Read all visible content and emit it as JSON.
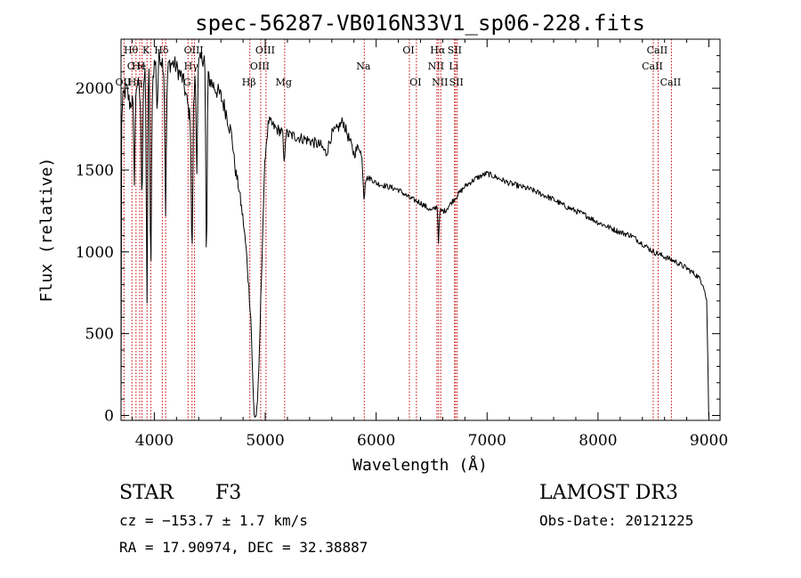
{
  "chart_data": {
    "type": "line",
    "title": "spec-56287-VB016N33V1_sp06-228.fits",
    "xlabel": "Wavelength (Å)",
    "ylabel": "Flux (relative)",
    "xlim": [
      3700,
      9100
    ],
    "ylim": [
      -30,
      2300
    ],
    "x_ticks": [
      4000,
      5000,
      6000,
      7000,
      8000,
      9000
    ],
    "y_ticks": [
      0,
      500,
      1000,
      1500,
      2000
    ],
    "x_tick_labels": [
      "4000",
      "5000",
      "6000",
      "7000",
      "8000",
      "9000"
    ],
    "y_tick_labels": [
      "0",
      "500",
      "1000",
      "1500",
      "2000"
    ],
    "line_color": "#000000",
    "marker_color": "#cc0000",
    "spectrum_anchors": [
      [
        3700,
        0
      ],
      [
        3705,
        1800
      ],
      [
        3720,
        1950
      ],
      [
        3750,
        2000
      ],
      [
        3780,
        1900
      ],
      [
        3820,
        1950
      ],
      [
        3850,
        2050
      ],
      [
        3880,
        1900
      ],
      [
        3900,
        2050
      ],
      [
        3950,
        2150
      ],
      [
        3970,
        1950
      ],
      [
        4000,
        2150
      ],
      [
        4050,
        2200
      ],
      [
        4080,
        2150
      ],
      [
        4102,
        1950
      ],
      [
        4130,
        2150
      ],
      [
        4180,
        2150
      ],
      [
        4220,
        2100
      ],
      [
        4260,
        2050
      ],
      [
        4300,
        1900
      ],
      [
        4340,
        1750
      ],
      [
        4370,
        2100
      ],
      [
        4400,
        2150
      ],
      [
        4450,
        2200
      ],
      [
        4500,
        2050
      ],
      [
        4550,
        2000
      ],
      [
        4600,
        1950
      ],
      [
        4650,
        1850
      ],
      [
        4700,
        1700
      ],
      [
        4730,
        1500
      ],
      [
        4760,
        1400
      ],
      [
        4800,
        1200
      ],
      [
        4830,
        1000
      ],
      [
        4850,
        800
      ],
      [
        4870,
        600
      ],
      [
        4880,
        400
      ],
      [
        4890,
        150
      ],
      [
        4900,
        0
      ],
      [
        4920,
        0
      ],
      [
        4940,
        200
      ],
      [
        4960,
        700
      ],
      [
        4980,
        1200
      ],
      [
        5000,
        1600
      ],
      [
        5030,
        1800
      ],
      [
        5100,
        1750
      ],
      [
        5200,
        1720
      ],
      [
        5300,
        1700
      ],
      [
        5400,
        1680
      ],
      [
        5500,
        1650
      ],
      [
        5550,
        1600
      ],
      [
        5600,
        1720
      ],
      [
        5650,
        1750
      ],
      [
        5700,
        1800
      ],
      [
        5750,
        1700
      ],
      [
        5800,
        1600
      ],
      [
        5850,
        1650
      ],
      [
        5900,
        1450
      ],
      [
        5950,
        1450
      ],
      [
        6000,
        1420
      ],
      [
        6100,
        1400
      ],
      [
        6200,
        1380
      ],
      [
        6300,
        1330
      ],
      [
        6400,
        1300
      ],
      [
        6500,
        1250
      ],
      [
        6550,
        1280
      ],
      [
        6563,
        1050
      ],
      [
        6575,
        1250
      ],
      [
        6620,
        1250
      ],
      [
        6700,
        1320
      ],
      [
        6800,
        1400
      ],
      [
        6900,
        1450
      ],
      [
        7000,
        1480
      ],
      [
        7100,
        1450
      ],
      [
        7200,
        1420
      ],
      [
        7300,
        1400
      ],
      [
        7400,
        1380
      ],
      [
        7500,
        1350
      ],
      [
        7600,
        1320
      ],
      [
        7700,
        1280
      ],
      [
        7800,
        1250
      ],
      [
        7900,
        1220
      ],
      [
        8000,
        1180
      ],
      [
        8100,
        1150
      ],
      [
        8200,
        1120
      ],
      [
        8300,
        1100
      ],
      [
        8400,
        1050
      ],
      [
        8500,
        1000
      ],
      [
        8600,
        970
      ],
      [
        8700,
        940
      ],
      [
        8800,
        900
      ],
      [
        8900,
        850
      ],
      [
        8950,
        800
      ],
      [
        8980,
        700
      ],
      [
        9000,
        0
      ]
    ],
    "absorption_dips": [
      {
        "center": 3820,
        "depth": 500
      },
      {
        "center": 3889,
        "depth": 600
      },
      {
        "center": 3934,
        "depth": 1400
      },
      {
        "center": 3968,
        "depth": 1100
      },
      {
        "center": 4026,
        "depth": 300
      },
      {
        "center": 4102,
        "depth": 700
      },
      {
        "center": 4340,
        "depth": 800
      },
      {
        "center": 4383,
        "depth": 600
      },
      {
        "center": 4470,
        "depth": 1200
      },
      {
        "center": 5170,
        "depth": 200
      },
      {
        "center": 5890,
        "depth": 150
      }
    ],
    "line_markers": [
      {
        "w": 3727,
        "labels": [
          {
            "text": "OII",
            "row": 2
          }
        ]
      },
      {
        "w": 3798,
        "labels": [
          {
            "text": "Hθ",
            "row": 0
          },
          {
            "text": "O",
            "row": 1
          }
        ]
      },
      {
        "w": 3835,
        "labels": [
          {
            "text": "Hη",
            "row": 2
          }
        ]
      },
      {
        "w": 3869,
        "labels": [
          {
            "text": "He",
            "row": 1
          }
        ]
      },
      {
        "w": 3889,
        "labels": [
          {
            "text": "H",
            "row": 1
          }
        ]
      },
      {
        "w": 3934,
        "labels": [
          {
            "text": "K",
            "row": 0
          }
        ]
      },
      {
        "w": 3968,
        "labels": [
          {
            "text": "",
            "row": 0
          }
        ]
      },
      {
        "w": 4072,
        "labels": [
          {
            "text": "Hδ",
            "row": 0
          }
        ]
      },
      {
        "w": 4102,
        "labels": [
          {
            "text": "",
            "row": 0
          }
        ]
      },
      {
        "w": 4304,
        "labels": [
          {
            "text": "G",
            "row": 2
          }
        ]
      },
      {
        "w": 4340,
        "labels": [
          {
            "text": "Hγ",
            "row": 1
          }
        ]
      },
      {
        "w": 4363,
        "labels": [
          {
            "text": "OIII",
            "row": 0
          }
        ]
      },
      {
        "w": 4861,
        "labels": [
          {
            "text": "Hβ",
            "row": 2
          }
        ]
      },
      {
        "w": 4959,
        "labels": [
          {
            "text": "OIII",
            "row": 1
          }
        ]
      },
      {
        "w": 5007,
        "labels": [
          {
            "text": "OIII",
            "row": 0
          }
        ]
      },
      {
        "w": 5175,
        "labels": [
          {
            "text": "Mg",
            "row": 2
          }
        ]
      },
      {
        "w": 5893,
        "labels": [
          {
            "text": "Na",
            "row": 1
          }
        ]
      },
      {
        "w": 6300,
        "labels": [
          {
            "text": "OI",
            "row": 0
          }
        ]
      },
      {
        "w": 6363,
        "labels": [
          {
            "text": "OI",
            "row": 2
          }
        ]
      },
      {
        "w": 6548,
        "labels": [
          {
            "text": "NII",
            "row": 1
          }
        ]
      },
      {
        "w": 6563,
        "labels": [
          {
            "text": "Hα",
            "row": 0
          }
        ]
      },
      {
        "w": 6583,
        "labels": [
          {
            "text": "NII",
            "row": 2
          }
        ]
      },
      {
        "w": 6707,
        "labels": [
          {
            "text": "Li",
            "row": 1
          }
        ]
      },
      {
        "w": 6716,
        "labels": [
          {
            "text": "SII",
            "row": 0
          }
        ]
      },
      {
        "w": 6731,
        "labels": [
          {
            "text": "SII",
            "row": 2
          }
        ]
      },
      {
        "w": 8498,
        "labels": [
          {
            "text": "CaII",
            "row": 1
          }
        ]
      },
      {
        "w": 8542,
        "labels": [
          {
            "text": "CaII",
            "row": 0
          }
        ]
      },
      {
        "w": 8662,
        "labels": [
          {
            "text": "CaII",
            "row": 2
          }
        ]
      }
    ]
  },
  "info": {
    "object_class": "STAR",
    "subclass": "F3",
    "survey": "LAMOST DR3",
    "redshift": "cz = −153.7 ± 1.7 km/s",
    "obs_date": "Obs-Date: 20121225",
    "coords": "RA =  17.90974, DEC =  32.38887"
  }
}
